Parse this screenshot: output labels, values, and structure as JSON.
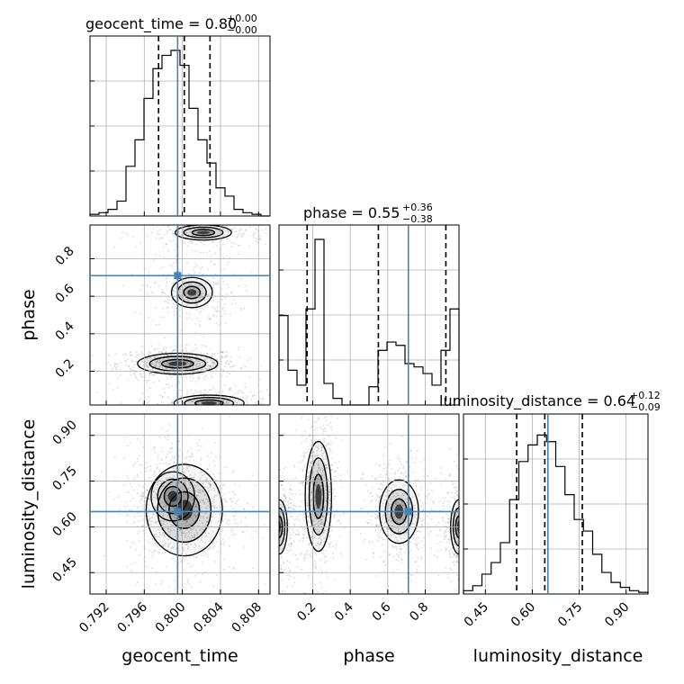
{
  "chart_data": {
    "type": "corner",
    "colors": {
      "truth": "#4682b4",
      "hist": "#000000",
      "grid": "#b0b0b0",
      "points": "#999999"
    },
    "parameters": [
      {
        "name": "geocent_time",
        "range": [
          0.7903,
          0.8092
        ],
        "ticks": [
          0.792,
          0.796,
          0.8,
          0.804,
          0.808
        ],
        "tick_labels": [
          "0.792",
          "0.796",
          "0.800",
          "0.804",
          "0.808"
        ],
        "median": 0.8002,
        "quantiles": [
          0.7975,
          0.8002,
          0.8029
        ],
        "truth": 0.7995,
        "title_main": "geocent_time = 0.80",
        "title_sup": "+0.00",
        "title_sub": "−0.00"
      },
      {
        "name": "phase",
        "range": [
          0.02,
          0.98
        ],
        "ticks": [
          0.2,
          0.4,
          0.6,
          0.8
        ],
        "tick_labels": [
          "0.2",
          "0.4",
          "0.6",
          "0.8"
        ],
        "median": 0.55,
        "quantiles": [
          0.17,
          0.55,
          0.91
        ],
        "truth": 0.71,
        "title_main": "phase = 0.55",
        "title_sup": "+0.36",
        "title_sub": "−0.38"
      },
      {
        "name": "luminosity_distance",
        "range": [
          0.38,
          0.97
        ],
        "ticks": [
          0.45,
          0.6,
          0.75,
          0.9
        ],
        "tick_labels": [
          "0.45",
          "0.60",
          "0.75",
          "0.90"
        ],
        "median": 0.64,
        "quantiles": [
          0.55,
          0.64,
          0.76
        ],
        "truth": 0.65,
        "title_main": "luminosity_distance = 0.64",
        "title_sup": "+0.12",
        "title_sub": "−0.09"
      }
    ],
    "histograms": [
      {
        "parameter": "geocent_time",
        "bin_heights": [
          0.01,
          0.02,
          0.04,
          0.09,
          0.3,
          0.46,
          0.71,
          0.89,
          0.97,
          1.0,
          0.91,
          0.65,
          0.46,
          0.32,
          0.17,
          0.12,
          0.04,
          0.02,
          0.01,
          0.0
        ]
      },
      {
        "parameter": "phase",
        "bin_heights": [
          0.54,
          0.21,
          0.12,
          0.58,
          1.0,
          0.13,
          0.04,
          0.0,
          0.0,
          0.0,
          0.11,
          0.33,
          0.38,
          0.36,
          0.25,
          0.23,
          0.19,
          0.12,
          0.33,
          0.58
        ]
      },
      {
        "parameter": "luminosity_distance",
        "bin_heights": [
          0.02,
          0.05,
          0.12,
          0.19,
          0.31,
          0.57,
          0.8,
          0.9,
          0.96,
          0.92,
          0.77,
          0.6,
          0.45,
          0.38,
          0.24,
          0.13,
          0.07,
          0.04,
          0.02,
          0.01
        ]
      }
    ],
    "density_panels": [
      {
        "x": "geocent_time",
        "y": "phase",
        "blobs": [
          {
            "cx": 0.7995,
            "cy": 0.24,
            "sx": 0.0021,
            "sy": 0.028,
            "w": 1.0
          },
          {
            "cx": 0.801,
            "cy": 0.62,
            "sx": 0.0016,
            "sy": 0.06,
            "w": 0.45
          },
          {
            "cx": 0.8022,
            "cy": 0.94,
            "sx": 0.0022,
            "sy": 0.03,
            "w": 0.45
          },
          {
            "cx": 0.8028,
            "cy": 0.03,
            "sx": 0.0026,
            "sy": 0.03,
            "w": 0.5
          }
        ]
      },
      {
        "x": "geocent_time",
        "y": "luminosity_distance",
        "blobs": [
          {
            "cx": 0.8002,
            "cy": 0.655,
            "sx": 0.002,
            "sy": 0.075,
            "w": 1.0
          },
          {
            "cx": 0.799,
            "cy": 0.7,
            "sx": 0.0017,
            "sy": 0.06,
            "w": 0.45
          }
        ]
      },
      {
        "x": "phase",
        "y": "luminosity_distance",
        "blobs": [
          {
            "cx": 0.23,
            "cy": 0.7,
            "sx": 0.035,
            "sy": 0.09,
            "w": 1.0
          },
          {
            "cx": 0.66,
            "cy": 0.65,
            "sx": 0.06,
            "sy": 0.06,
            "w": 0.75
          },
          {
            "cx": 0.02,
            "cy": 0.6,
            "sx": 0.03,
            "sy": 0.06,
            "w": 0.55
          },
          {
            "cx": 0.98,
            "cy": 0.6,
            "sx": 0.03,
            "sy": 0.06,
            "w": 0.55
          }
        ]
      }
    ]
  }
}
